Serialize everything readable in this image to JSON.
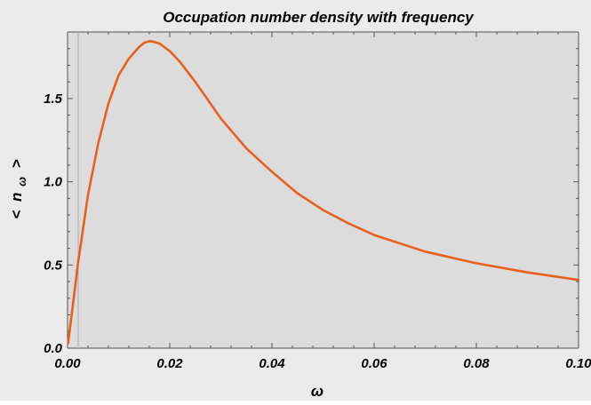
{
  "chart_data": {
    "type": "line",
    "title": "Occupation number density with frequency",
    "xlabel": "ω",
    "ylabel": "< n ω >",
    "ylabel_parts": {
      "open": "<",
      "symbol": "n",
      "subscript": "ω",
      "close": ">"
    },
    "xlim": [
      0,
      0.1
    ],
    "ylim": [
      0,
      1.9
    ],
    "x_ticks": [
      {
        "value": 0.0,
        "label": "0.00"
      },
      {
        "value": 0.02,
        "label": "0.02"
      },
      {
        "value": 0.04,
        "label": "0.04"
      },
      {
        "value": 0.06,
        "label": "0.06"
      },
      {
        "value": 0.08,
        "label": "0.08"
      },
      {
        "value": 0.1,
        "label": "0.10"
      }
    ],
    "y_ticks": [
      {
        "value": 0.0,
        "label": "0.0"
      },
      {
        "value": 0.5,
        "label": "0.5"
      },
      {
        "value": 1.0,
        "label": "1.0"
      },
      {
        "value": 1.5,
        "label": "1.5"
      }
    ],
    "grid": false,
    "series": [
      {
        "color": "#e8601c",
        "x": [
          0.0001,
          0.001,
          0.002,
          0.004,
          0.006,
          0.008,
          0.01,
          0.012,
          0.014,
          0.015,
          0.016,
          0.017,
          0.018,
          0.02,
          0.022,
          0.025,
          0.03,
          0.035,
          0.04,
          0.045,
          0.05,
          0.055,
          0.06,
          0.07,
          0.08,
          0.09,
          0.1
        ],
        "y": [
          0.03,
          0.25,
          0.5,
          0.92,
          1.23,
          1.47,
          1.64,
          1.74,
          1.81,
          1.835,
          1.845,
          1.84,
          1.83,
          1.785,
          1.72,
          1.6,
          1.38,
          1.2,
          1.06,
          0.93,
          0.83,
          0.75,
          0.68,
          0.58,
          0.51,
          0.455,
          0.41
        ]
      }
    ],
    "colors": {
      "background": "#ebebeb",
      "plot_background": "#dcdcdc",
      "line": "#e8601c",
      "axes": "#555555",
      "text": "#000000"
    }
  }
}
